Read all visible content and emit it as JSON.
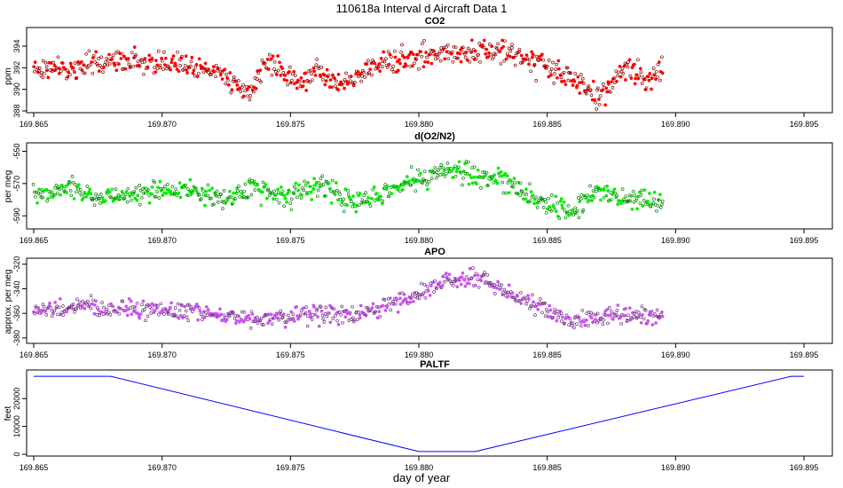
{
  "figure": {
    "title": "110618a   Interval d Aircraft Data 1",
    "xlabel": "day of year"
  },
  "chart_data": [
    {
      "type": "scatter",
      "title": "CO2",
      "ylabel": "ppm",
      "xlim": [
        169.865,
        169.895
      ],
      "ylim": [
        388,
        395.4
      ],
      "xticks": [
        "169.865",
        "169.870",
        "169.875",
        "169.880",
        "169.885",
        "169.890",
        "169.895"
      ],
      "yticks": [
        "388",
        "390",
        "392",
        "394"
      ],
      "color": "#ff0000",
      "x_range": [
        169.865,
        169.8895
      ],
      "trend": [
        [
          169.865,
          392.0
        ],
        [
          169.8665,
          391.8
        ],
        [
          169.867,
          392.5
        ],
        [
          169.869,
          392.6
        ],
        [
          169.871,
          392.4
        ],
        [
          169.8725,
          391.5
        ],
        [
          169.873,
          390.3
        ],
        [
          169.8735,
          389.5
        ],
        [
          169.874,
          392.8
        ],
        [
          169.8748,
          391.5
        ],
        [
          169.8755,
          390.3
        ],
        [
          169.876,
          391.8
        ],
        [
          169.8768,
          390.5
        ],
        [
          169.8775,
          391.0
        ],
        [
          169.8785,
          392.6
        ],
        [
          169.88,
          393.1
        ],
        [
          169.882,
          393.5
        ],
        [
          169.8835,
          393.4
        ],
        [
          169.885,
          392.0
        ],
        [
          169.8862,
          390.6
        ],
        [
          169.887,
          389.3
        ],
        [
          169.888,
          392.0
        ],
        [
          169.889,
          391.0
        ],
        [
          169.8895,
          392.0
        ]
      ],
      "noise": 0.75,
      "point_count": 700
    },
    {
      "type": "scatter",
      "title": "d(O2/N2)",
      "ylabel": "per meg",
      "xlim": [
        169.865,
        169.895
      ],
      "ylim": [
        -597,
        -547
      ],
      "xticks": [
        "169.865",
        "169.870",
        "169.875",
        "169.880",
        "169.885",
        "169.890",
        "169.895"
      ],
      "yticks": [
        "-550",
        "-570",
        "-590"
      ],
      "color": "#00ee00",
      "x_range": [
        169.865,
        169.8895
      ],
      "trend": [
        [
          169.865,
          -576
        ],
        [
          169.8665,
          -573
        ],
        [
          169.8675,
          -580
        ],
        [
          169.869,
          -576
        ],
        [
          169.871,
          -573
        ],
        [
          169.8725,
          -580
        ],
        [
          169.8735,
          -573
        ],
        [
          169.875,
          -578
        ],
        [
          169.8762,
          -571
        ],
        [
          169.8775,
          -582
        ],
        [
          169.879,
          -573
        ],
        [
          169.88,
          -567
        ],
        [
          169.8815,
          -561
        ],
        [
          169.8825,
          -566
        ],
        [
          169.8835,
          -569
        ],
        [
          169.885,
          -583
        ],
        [
          169.886,
          -588
        ],
        [
          169.887,
          -573
        ],
        [
          169.888,
          -580
        ],
        [
          169.8895,
          -582
        ]
      ],
      "noise": 4.5,
      "point_count": 700
    },
    {
      "type": "scatter",
      "title": "APO",
      "ylabel": "approx. per meg",
      "xlim": [
        169.865,
        169.895
      ],
      "ylim": [
        -383,
        -318
      ],
      "xticks": [
        "169.865",
        "169.870",
        "169.875",
        "169.880",
        "169.885",
        "169.890",
        "169.895"
      ],
      "yticks": [
        "-320",
        "-340",
        "-360",
        "-380"
      ],
      "color": "#cc55ee",
      "x_range": [
        169.865,
        169.8895
      ],
      "trend": [
        [
          169.865,
          -358
        ],
        [
          169.8665,
          -354
        ],
        [
          169.868,
          -357
        ],
        [
          169.87,
          -357
        ],
        [
          169.8715,
          -359
        ],
        [
          169.873,
          -364
        ],
        [
          169.875,
          -362
        ],
        [
          169.8765,
          -360
        ],
        [
          169.8775,
          -363
        ],
        [
          169.8785,
          -355
        ],
        [
          169.88,
          -344
        ],
        [
          169.881,
          -333
        ],
        [
          169.8825,
          -332
        ],
        [
          169.8835,
          -344
        ],
        [
          169.885,
          -358
        ],
        [
          169.886,
          -368
        ],
        [
          169.887,
          -362
        ],
        [
          169.8895,
          -362
        ]
      ],
      "noise": 5,
      "point_count": 700
    },
    {
      "type": "line",
      "title": "PALTF",
      "ylabel": "feet",
      "xlim": [
        169.865,
        169.895
      ],
      "ylim": [
        0,
        29000
      ],
      "xticks": [
        "169.865",
        "169.870",
        "169.875",
        "169.880",
        "169.885",
        "169.890",
        "169.895"
      ],
      "yticks": [
        "0",
        "10000",
        "20000"
      ],
      "color": "#0000ff",
      "x": [
        169.865,
        169.868,
        169.88,
        169.8822,
        169.8945,
        169.895
      ],
      "y": [
        28000,
        28000,
        1000,
        1000,
        28000,
        28000
      ]
    }
  ]
}
